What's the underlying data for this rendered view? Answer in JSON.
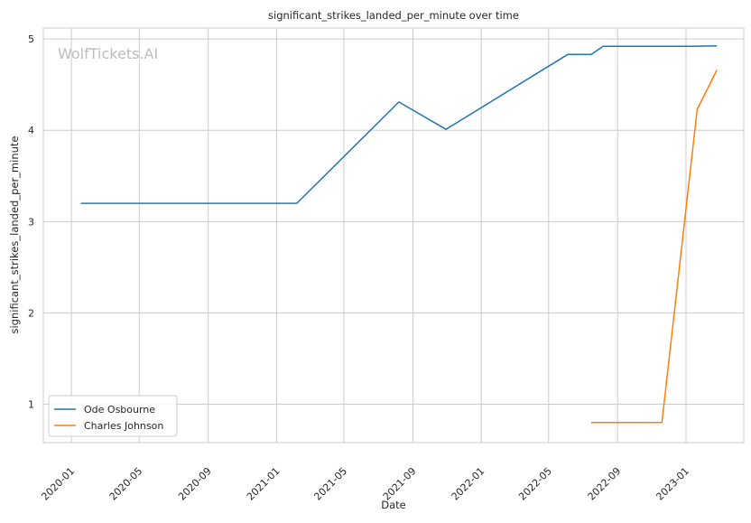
{
  "chart_data": {
    "type": "line",
    "title": "significant_strikes_landed_per_minute over time",
    "xlabel": "Date",
    "ylabel": "significant_strikes_landed_per_minute",
    "watermark": "WolfTickets.AI",
    "x_ticks": [
      "2020-01",
      "2020-05",
      "2020-09",
      "2021-01",
      "2021-05",
      "2021-09",
      "2022-01",
      "2022-05",
      "2022-09",
      "2023-01"
    ],
    "y_ticks": [
      1,
      2,
      3,
      4,
      5
    ],
    "xlim": [
      "2019-11-12",
      "2023-04-14"
    ],
    "ylim": [
      0.58,
      5.12
    ],
    "grid": true,
    "legend_position": "lower-left",
    "series": [
      {
        "name": "Ode Osbourne",
        "color": "#1f77b4",
        "points": [
          {
            "x": "2020-01-18",
            "y": 3.2
          },
          {
            "x": "2021-02-06",
            "y": 3.2
          },
          {
            "x": "2021-08-07",
            "y": 4.31
          },
          {
            "x": "2021-10-30",
            "y": 4.01
          },
          {
            "x": "2022-06-04",
            "y": 4.83
          },
          {
            "x": "2022-07-16",
            "y": 4.83
          },
          {
            "x": "2022-08-06",
            "y": 4.92
          },
          {
            "x": "2023-01-14",
            "y": 4.92
          },
          {
            "x": "2023-02-25",
            "y": 4.925
          }
        ]
      },
      {
        "name": "Charles Johnson",
        "color": "#ff7f0e",
        "points": [
          {
            "x": "2022-07-16",
            "y": 0.8
          },
          {
            "x": "2022-11-19",
            "y": 0.8
          },
          {
            "x": "2023-01-21",
            "y": 4.23
          },
          {
            "x": "2023-02-25",
            "y": 4.66
          }
        ]
      }
    ]
  }
}
